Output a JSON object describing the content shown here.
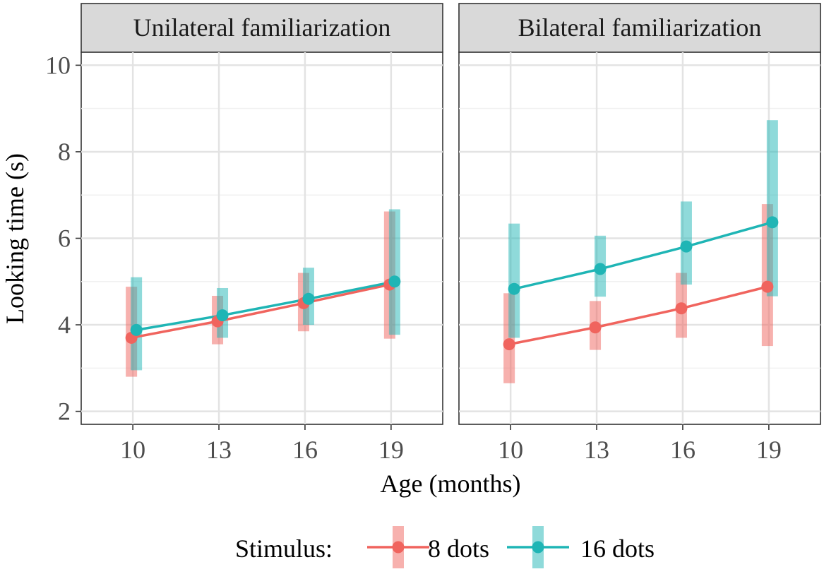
{
  "chart_data": {
    "type": "line",
    "xlabel": "Age (months)",
    "ylabel": "Looking time (s)",
    "x_ticks": [
      "10",
      "13",
      "16",
      "19"
    ],
    "y_ticks": [
      "2",
      "4",
      "6",
      "8",
      "10"
    ],
    "ylim": [
      1.7,
      10.3
    ],
    "xlim": [
      8.2,
      20.8
    ],
    "legend": {
      "title": "Stimulus:",
      "position": "bottom",
      "items": [
        "8 dots",
        "16 dots"
      ]
    },
    "colors": {
      "8 dots": "#F0645E",
      "16 dots": "#1FB5B5"
    },
    "panels": [
      {
        "title": "Unilateral familiarization",
        "series": [
          {
            "name": "8 dots",
            "x": [
              10,
              13,
              16,
              19
            ],
            "values": [
              3.7,
              4.08,
              4.5,
              4.93
            ],
            "ci_low": [
              2.8,
              3.55,
              3.85,
              3.68
            ],
            "ci_high": [
              4.88,
              4.67,
              5.2,
              6.62
            ]
          },
          {
            "name": "16 dots",
            "x": [
              10,
              13,
              16,
              19
            ],
            "values": [
              3.88,
              4.22,
              4.6,
              5.0
            ],
            "ci_low": [
              2.95,
              3.7,
              4.0,
              3.77
            ],
            "ci_high": [
              5.1,
              4.85,
              5.32,
              6.67
            ]
          }
        ]
      },
      {
        "title": "Bilateral familiarization",
        "series": [
          {
            "name": "8 dots",
            "x": [
              10,
              13,
              16,
              19
            ],
            "values": [
              3.55,
              3.94,
              4.38,
              4.88
            ],
            "ci_low": [
              2.65,
              3.42,
              3.7,
              3.51
            ],
            "ci_high": [
              4.73,
              4.55,
              5.2,
              6.79
            ]
          },
          {
            "name": "16 dots",
            "x": [
              10,
              13,
              16,
              19
            ],
            "values": [
              4.83,
              5.29,
              5.81,
              6.37
            ],
            "ci_low": [
              3.7,
              4.65,
              4.93,
              4.66
            ],
            "ci_high": [
              6.34,
              6.06,
              6.85,
              8.73
            ]
          }
        ]
      }
    ]
  }
}
